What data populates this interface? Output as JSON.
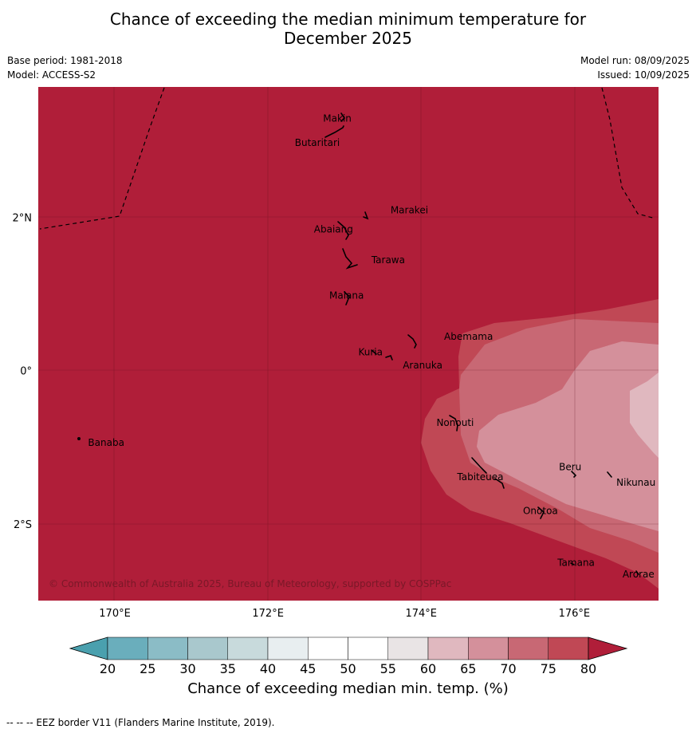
{
  "title_line1": "Chance of exceeding the median minimum temperature for",
  "title_line2": "December 2025",
  "meta": {
    "base_period": "Base period: 1981-2018",
    "model": "Model: ACCESS-S2",
    "model_run": "Model run: 08/09/2025",
    "issued": "Issued: 10/09/2025"
  },
  "map": {
    "lon_range": [
      169.0,
      177.1
    ],
    "lat_range": [
      -3.0,
      3.7
    ],
    "lon_ticks": [
      {
        "v": 170,
        "label": "170°E"
      },
      {
        "v": 172,
        "label": "172°E"
      },
      {
        "v": 174,
        "label": "174°E"
      },
      {
        "v": 176,
        "label": "176°E"
      }
    ],
    "lat_ticks": [
      {
        "v": 2,
        "label": "2°N"
      },
      {
        "v": 0,
        "label": "0°"
      },
      {
        "v": -2,
        "label": "2°S"
      }
    ],
    "base_color": "#b01e39",
    "islands": [
      {
        "name": "Makin",
        "lon": 172.72,
        "lat": 3.25
      },
      {
        "name": "Butaritari",
        "lon": 172.35,
        "lat": 2.93
      },
      {
        "name": "Marakei",
        "lon": 173.6,
        "lat": 2.05
      },
      {
        "name": "Abaiang",
        "lon": 172.6,
        "lat": 1.8
      },
      {
        "name": "Tarawa",
        "lon": 173.35,
        "lat": 1.4
      },
      {
        "name": "Maiana",
        "lon": 172.8,
        "lat": 0.94
      },
      {
        "name": "Abemama",
        "lon": 174.3,
        "lat": 0.4
      },
      {
        "name": "Kuria",
        "lon": 173.18,
        "lat": 0.2
      },
      {
        "name": "Aranuka",
        "lon": 173.76,
        "lat": 0.03
      },
      {
        "name": "Banaba",
        "lon": 169.65,
        "lat": -0.98
      },
      {
        "name": "Nonouti",
        "lon": 174.2,
        "lat": -0.72
      },
      {
        "name": "Tabiteuea",
        "lon": 174.47,
        "lat": -1.43
      },
      {
        "name": "Beru",
        "lon": 175.8,
        "lat": -1.3
      },
      {
        "name": "Nikunau",
        "lon": 176.55,
        "lat": -1.5
      },
      {
        "name": "Onotoa",
        "lon": 175.33,
        "lat": -1.87
      },
      {
        "name": "Tamana",
        "lon": 175.78,
        "lat": -2.55
      },
      {
        "name": "Arorae",
        "lon": 176.63,
        "lat": -2.7
      }
    ],
    "copyright": "© Commonwealth of Australia 2025, Bureau of Meteorology, supported by COSPPac"
  },
  "colorbar": {
    "ticks": [
      "20",
      "25",
      "30",
      "35",
      "40",
      "45",
      "50",
      "55",
      "60",
      "65",
      "70",
      "75",
      "80"
    ],
    "colors": [
      "#6aaebc",
      "#8bbcc6",
      "#a9c8cd",
      "#c8dadc",
      "#e8eef0",
      "#ffffff",
      "#ffffff",
      "#e9e4e5",
      "#e0b8bf",
      "#d4909b",
      "#c86874",
      "#c04855"
    ],
    "under_color": "#4aa0ae",
    "over_color": "#b01e39",
    "label": "Chance of exceeding median min. temp. (%)"
  },
  "footnote": "--  --  -- EEZ border V11 (Flanders Marine Institute, 2019)."
}
